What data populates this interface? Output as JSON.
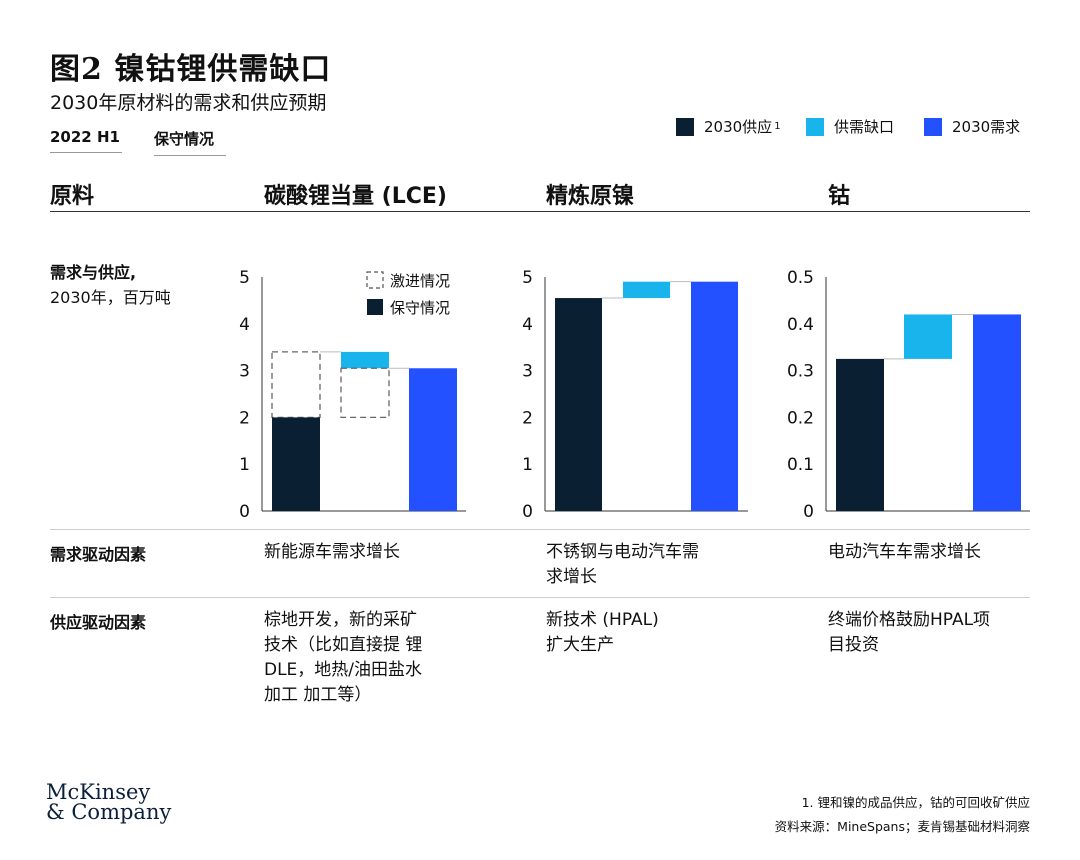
{
  "header": {
    "title": "图2 镍钴锂供需缺口",
    "subtitle": "2030年原材料的需求和供应预期",
    "tab_period": "2022 H1",
    "tab_scenario": "保守情况"
  },
  "legend": {
    "supply_label": "2030供应",
    "supply_sup": "1",
    "gap_label": "供需缺口",
    "demand_label": "2030需求",
    "supply_color": "#0b1f33",
    "gap_color": "#1ab4ec",
    "demand_color": "#2451ff"
  },
  "columns": {
    "material_header": "原料",
    "lce_header": "碳酸锂当量 (LCE)",
    "nickel_header": "精炼原镍",
    "cobalt_header": "钴"
  },
  "rows": {
    "chart_label": "需求与供应,",
    "unit_label": "2030年，百万吨",
    "demand_drivers_label": "需求驱动因素",
    "supply_drivers_label": "供应驱动因素"
  },
  "demand_drivers": {
    "lce": "新能源车需求增长",
    "nickel": "不锈钢与电动汽车需\n求增长",
    "cobalt": "电动汽车车需求增长"
  },
  "supply_drivers": {
    "lce": "棕地开发，新的采矿\n技术（比如直接提 锂\nDLE，地热/油田盐水\n加工 加工等）",
    "nickel": "新技术 (HPAL)\n扩大生产",
    "cobalt": "终端价格鼓励HPAL项\n目投资"
  },
  "chart_legend": {
    "aggressive": "激进情况",
    "conservative": "保守情况"
  },
  "chart_data": [
    {
      "type": "bar",
      "chart_subtype": "waterfall",
      "name": "碳酸锂当量 (LCE)",
      "categories": [
        "2030供应",
        "供需缺口",
        "2030需求"
      ],
      "supply_conservative": 2.0,
      "supply_aggressive": 3.4,
      "demand": 3.05,
      "gap_conservative": 1.05,
      "gap_aggressive": -0.35,
      "ylim": [
        0,
        5
      ],
      "yticks": [
        0,
        1,
        2,
        3,
        4,
        5
      ],
      "ytick_labels": [
        "0",
        "1",
        "2",
        "3",
        "4",
        "5"
      ]
    },
    {
      "type": "bar",
      "chart_subtype": "waterfall",
      "name": "精炼原镍",
      "categories": [
        "2030供应",
        "供需缺口",
        "2030需求"
      ],
      "supply": 4.55,
      "demand": 4.9,
      "gap": 0.35,
      "ylim": [
        0,
        5
      ],
      "yticks": [
        0,
        1,
        2,
        3,
        4,
        5
      ],
      "ytick_labels": [
        "0",
        "1",
        "2",
        "3",
        "4",
        "5"
      ]
    },
    {
      "type": "bar",
      "chart_subtype": "waterfall",
      "name": "钴",
      "categories": [
        "2030供应",
        "供需缺口",
        "2030需求"
      ],
      "supply": 0.325,
      "demand": 0.42,
      "gap": 0.095,
      "ylim": [
        0,
        0.5
      ],
      "yticks": [
        0,
        0.1,
        0.2,
        0.3,
        0.4,
        0.5
      ],
      "ytick_labels": [
        "0",
        "0.1",
        "0.2",
        "0.3",
        "0.4",
        "0.5"
      ]
    }
  ],
  "footer": {
    "logo_line1": "McKinsey",
    "logo_line2": "& Company",
    "note": "1. 锂和镍的成品供应，钴的可回收矿供应",
    "source": "资料来源：MineSpans；麦肯锡基础材料洞察"
  }
}
